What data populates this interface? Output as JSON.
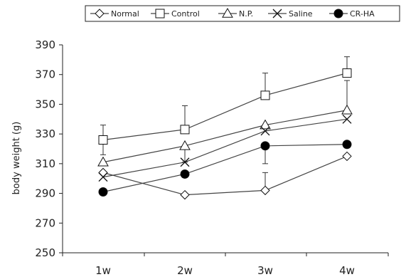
{
  "chart_data": {
    "type": "line",
    "title": "",
    "xlabel": "",
    "ylabel": "body weight (g)",
    "categories": [
      "1w",
      "2w",
      "3w",
      "4w"
    ],
    "ylim": [
      250,
      390
    ],
    "yticks": [
      250,
      270,
      290,
      310,
      330,
      350,
      370,
      390
    ],
    "grid": false,
    "legend_position": "top",
    "series": [
      {
        "name": "Normal",
        "marker": "open-diamond",
        "values": [
          304,
          289,
          292,
          315
        ],
        "error_upper": [
          null,
          null,
          12,
          null
        ]
      },
      {
        "name": "Control",
        "marker": "open-square",
        "values": [
          326,
          333,
          356,
          371
        ],
        "error_upper": [
          10,
          16,
          15,
          11
        ]
      },
      {
        "name": "N.P.",
        "marker": "open-triangle",
        "values": [
          311,
          322,
          336,
          346
        ],
        "error_upper": [
          null,
          null,
          null,
          20
        ]
      },
      {
        "name": "Saline",
        "marker": "x",
        "values": [
          301,
          311,
          332,
          340
        ],
        "error_upper": [
          null,
          null,
          null,
          null
        ]
      },
      {
        "name": "CR-HA",
        "marker": "filled-circle",
        "values": [
          291,
          303,
          322,
          323
        ],
        "error_upper": [
          null,
          null,
          null,
          null
        ]
      }
    ],
    "error_lower": [
      {
        "series": "Control",
        "index": 0,
        "value": 316
      },
      {
        "series": "N.P.",
        "index": 1,
        "value": 311
      },
      {
        "series": "CR-HA",
        "index": 2,
        "value": 310
      }
    ],
    "legend": [
      "Normal",
      "Control",
      "N.P.",
      "Saline",
      "CR-HA"
    ]
  },
  "colors": {
    "line": "#444444",
    "marker_stroke": "#111111",
    "marker_fill_open": "#ffffff",
    "marker_fill_solid": "#000000"
  }
}
